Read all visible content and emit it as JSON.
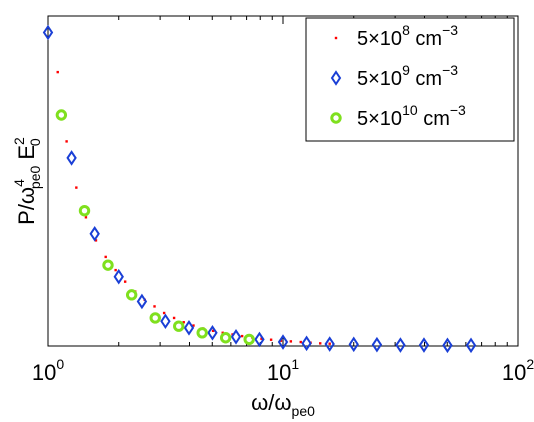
{
  "chart_data": {
    "type": "scatter",
    "title": "",
    "xlabel": {
      "prefix": "ω/ω",
      "sub": "pe0"
    },
    "ylabel": {
      "prefix": "P/ω",
      "sup": "4",
      "sub": "pe0",
      "mid": " E",
      "sup2": "2",
      "sub2": "0"
    },
    "xscale": "log",
    "xlim": [
      1,
      100
    ],
    "ylim": [
      0,
      1
    ],
    "yticks_shown": false,
    "xticks": [
      {
        "value": 1,
        "base": "10",
        "exp": "0"
      },
      {
        "value": 10,
        "base": "10",
        "exp": "1"
      },
      {
        "value": 100,
        "base": "10",
        "exp": "2"
      }
    ],
    "grid": false,
    "legend_position": "top-right",
    "series": [
      {
        "name": {
          "pre": "5×10",
          "exp": "8",
          "unit": " cm",
          "unitexp": "−3"
        },
        "marker": "dot",
        "color": "#ff0000",
        "x": [
          1.1,
          1.2,
          1.32,
          1.45,
          1.6,
          1.76,
          1.94,
          2.13,
          2.35,
          2.58,
          2.84,
          3.12,
          3.44,
          3.78,
          4.16,
          4.58,
          5.04,
          5.54,
          6.1,
          6.7,
          7.4,
          8.1,
          8.9,
          9.8,
          10.8,
          11.9,
          13.1,
          14.4,
          15.8
        ],
        "y": [
          0.83,
          0.62,
          0.48,
          0.39,
          0.32,
          0.27,
          0.23,
          0.195,
          0.165,
          0.14,
          0.12,
          0.1,
          0.085,
          0.072,
          0.062,
          0.053,
          0.046,
          0.04,
          0.035,
          0.03,
          0.026,
          0.022,
          0.019,
          0.016,
          0.014,
          0.012,
          0.01,
          0.008,
          0.007
        ]
      },
      {
        "name": {
          "pre": "5×10",
          "exp": "9",
          "unit": " cm",
          "unitexp": "−3"
        },
        "marker": "diamond",
        "color": "#1a3fd6",
        "x": [
          1.0,
          1.26,
          1.58,
          2.0,
          2.51,
          3.16,
          3.98,
          5.01,
          6.31,
          7.94,
          10.0,
          12.6,
          15.8,
          20.0,
          25.1,
          31.6,
          39.8,
          50.1,
          63.1
        ],
        "y": [
          0.95,
          0.57,
          0.34,
          0.21,
          0.135,
          0.075,
          0.055,
          0.04,
          0.028,
          0.02,
          0.012,
          0.008,
          0.006,
          0.005,
          0.004,
          0.003,
          0.003,
          0.002,
          0.002
        ]
      },
      {
        "name": {
          "pre": "5×10",
          "exp": "10",
          "unit": " cm",
          "unitexp": "−3"
        },
        "marker": "circle",
        "color": "#7fe01e",
        "x": [
          1.14,
          1.43,
          1.8,
          2.27,
          2.86,
          3.6,
          4.53,
          5.7,
          7.18
        ],
        "y": [
          0.7,
          0.41,
          0.245,
          0.155,
          0.085,
          0.06,
          0.04,
          0.025,
          0.02
        ]
      }
    ]
  }
}
